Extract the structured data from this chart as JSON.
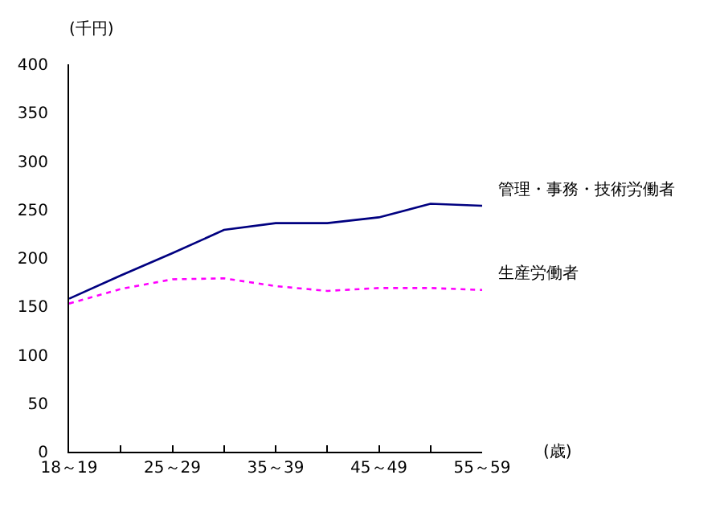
{
  "chart_data": {
    "type": "line",
    "ylabel": "(千円)",
    "xlabel": "(歳)",
    "categories": [
      "18～19",
      null,
      "25～29",
      null,
      "35～39",
      null,
      "45～49",
      null,
      "55～59"
    ],
    "ylim": [
      0,
      400
    ],
    "yticks": [
      0,
      50,
      100,
      150,
      200,
      250,
      300,
      350,
      400
    ],
    "grid": false,
    "legend": false,
    "marker": "none",
    "series": [
      {
        "name": "管理・事務・技術労働者",
        "color": "#000080",
        "line_style": "solid",
        "values": [
          158,
          182,
          205,
          229,
          236,
          236,
          242,
          256,
          254
        ]
      },
      {
        "name": "生産労働者",
        "color": "#ff00ff",
        "line_style": "dotted",
        "values": [
          153,
          168,
          178,
          179,
          171,
          166,
          169,
          169,
          167
        ]
      }
    ]
  }
}
